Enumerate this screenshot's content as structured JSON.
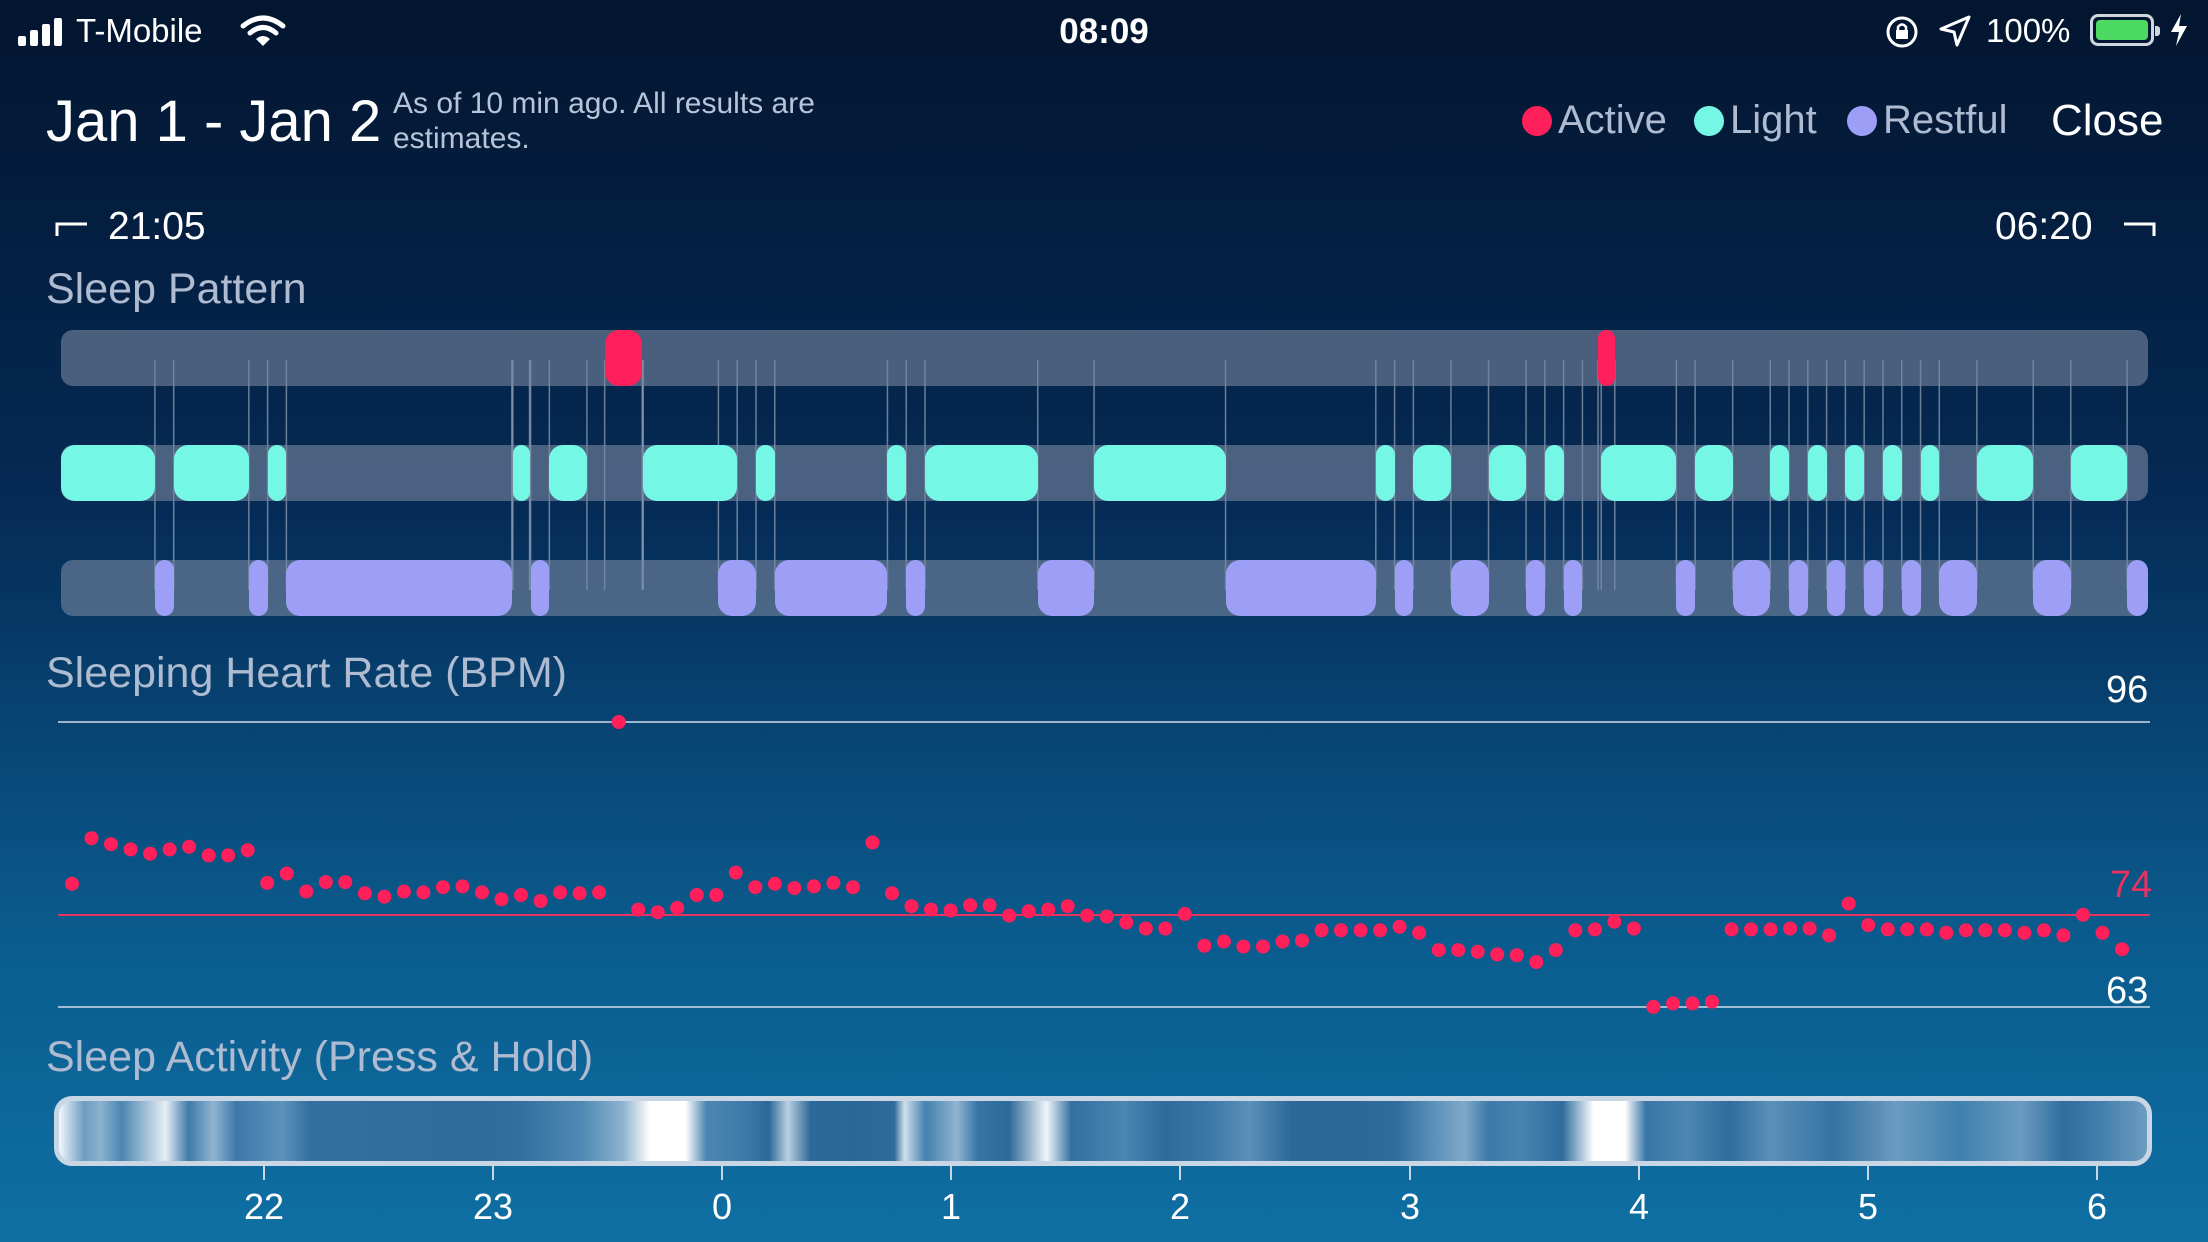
{
  "status_bar": {
    "carrier": "T-Mobile",
    "time": "08:09",
    "battery": "100%"
  },
  "header": {
    "date_range": "Jan 1 - Jan 2",
    "subtitle": "As of 10 min ago. All results are estimates.",
    "legend": [
      {
        "label": "Active",
        "color": "#ff1f5a"
      },
      {
        "label": "Light",
        "color": "#74f7e4"
      },
      {
        "label": "Restful",
        "color": "#9c9ff5"
      }
    ],
    "close_label": "Close"
  },
  "time_range": {
    "start": "21:05",
    "end": "06:20"
  },
  "sleep_pattern": {
    "title": "Sleep Pattern",
    "colors": {
      "active": "#ff1f5a",
      "light": "#74f7e4",
      "restful": "#9c9ff5"
    },
    "active": [
      [
        0.2605,
        0.2785
      ],
      [
        0.7365,
        0.7445
      ]
    ],
    "light": [
      [
        0.0,
        0.045
      ],
      [
        0.054,
        0.09
      ],
      [
        0.099,
        0.108
      ],
      [
        0.2165,
        0.2245
      ],
      [
        0.234,
        0.252
      ],
      [
        0.279,
        0.324
      ],
      [
        0.333,
        0.342
      ],
      [
        0.396,
        0.405
      ],
      [
        0.414,
        0.468
      ],
      [
        0.495,
        0.558
      ],
      [
        0.63,
        0.639
      ],
      [
        0.648,
        0.666
      ],
      [
        0.684,
        0.702
      ],
      [
        0.711,
        0.72
      ],
      [
        0.738,
        0.774
      ],
      [
        0.783,
        0.801
      ],
      [
        0.819,
        0.828
      ],
      [
        0.837,
        0.846
      ],
      [
        0.855,
        0.864
      ],
      [
        0.873,
        0.882
      ],
      [
        0.891,
        0.9
      ],
      [
        0.918,
        0.945
      ],
      [
        0.963,
        0.99
      ]
    ],
    "restful": [
      [
        0.045,
        0.054
      ],
      [
        0.09,
        0.099
      ],
      [
        0.108,
        0.216
      ],
      [
        0.225,
        0.234
      ],
      [
        0.315,
        0.333
      ],
      [
        0.342,
        0.396
      ],
      [
        0.405,
        0.414
      ],
      [
        0.468,
        0.495
      ],
      [
        0.558,
        0.63
      ],
      [
        0.639,
        0.648
      ],
      [
        0.666,
        0.684
      ],
      [
        0.702,
        0.711
      ],
      [
        0.72,
        0.729
      ],
      [
        0.774,
        0.783
      ],
      [
        0.801,
        0.819
      ],
      [
        0.828,
        0.837
      ],
      [
        0.846,
        0.855
      ],
      [
        0.864,
        0.873
      ],
      [
        0.882,
        0.891
      ],
      [
        0.9,
        0.918
      ],
      [
        0.945,
        0.963
      ],
      [
        0.99,
        1.0
      ]
    ]
  },
  "heart_rate": {
    "title": "Sleeping Heart Rate (BPM)",
    "max_label": "96",
    "avg_label": "74",
    "min_label": "63",
    "y_max": 96,
    "y_min": 63,
    "avg": 74,
    "points": [
      77.2,
      82.5,
      81.8,
      81.2,
      80.7,
      81.2,
      81.5,
      80.5,
      80.5,
      81.1,
      77.3,
      78.4,
      76.3,
      77.4,
      77.4,
      76.1,
      75.7,
      76.3,
      76.2,
      76.8,
      76.9,
      76.2,
      75.4,
      75.9,
      75.2,
      76.2,
      76.1,
      76.2,
      96.0,
      74.2,
      73.9,
      74.4,
      75.9,
      75.9,
      78.5,
      76.8,
      77.2,
      76.7,
      76.9,
      77.3,
      76.8,
      82.0,
      76.1,
      74.6,
      74.2,
      74.1,
      74.7,
      74.7,
      73.5,
      74.0,
      74.2,
      74.6,
      73.5,
      73.4,
      72.7,
      72.0,
      72.0,
      73.7,
      70.0,
      70.5,
      69.9,
      69.9,
      70.5,
      70.6,
      71.8,
      71.8,
      71.8,
      71.8,
      72.2,
      71.5,
      69.5,
      69.5,
      69.3,
      69.0,
      68.9,
      68.1,
      69.5,
      71.8,
      71.9,
      72.8,
      72.0,
      62.9,
      63.3,
      63.3,
      63.5,
      71.9,
      71.9,
      71.9,
      72.0,
      72.0,
      71.2,
      74.9,
      72.4,
      71.9,
      71.9,
      71.9,
      71.5,
      71.8,
      71.8,
      71.8,
      71.5,
      71.8,
      71.2,
      73.6,
      71.5,
      69.6
    ]
  },
  "sleep_activity": {
    "title": "Sleep Activity (Press & Hold)",
    "ticks": [
      "22",
      "23",
      "0",
      "1",
      "2",
      "3",
      "4",
      "5",
      "6"
    ]
  }
}
